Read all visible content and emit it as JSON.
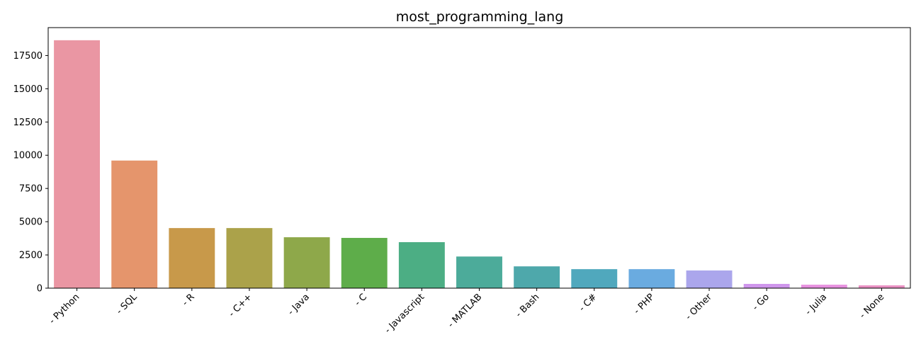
{
  "chart_data": {
    "type": "bar",
    "title": "most_programming_lang",
    "xlabel": "",
    "ylabel": "",
    "categories": [
      "- Python",
      "- SQL",
      "- R",
      "- C++",
      "- Java",
      "- C",
      "- Javascript",
      "- MATLAB",
      "- Bash",
      "- C#",
      "- PHP",
      "- Other",
      "- Go",
      "- Julia",
      "- None"
    ],
    "values": [
      18650,
      9600,
      4520,
      4520,
      3830,
      3780,
      3460,
      2380,
      1640,
      1430,
      1430,
      1330,
      320,
      260,
      210
    ],
    "colors": [
      "#ea96a3",
      "#e5956c",
      "#c8994a",
      "#aba24a",
      "#8ea84a",
      "#5ead4a",
      "#4cae84",
      "#4cab9a",
      "#4ea8ab",
      "#50a8bd",
      "#6aabe0",
      "#aba6ec",
      "#cf96ec",
      "#e791df",
      "#e990c2"
    ],
    "yticks": [
      0,
      2500,
      5000,
      7500,
      10000,
      12500,
      15000,
      17500
    ],
    "ylim": [
      0,
      19600
    ],
    "grid": false,
    "legend": "none"
  }
}
